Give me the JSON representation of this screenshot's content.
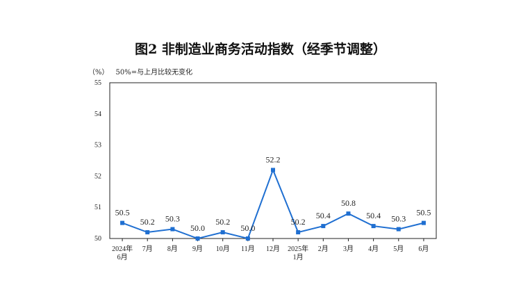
{
  "title": "图2  非制造业商务活动指数（经季节调整）",
  "unit": "（%）",
  "note": "50%=与上月比较无变化",
  "chart_data": {
    "type": "line",
    "title": "图2  非制造业商务活动指数（经季节调整）",
    "ylabel": "（%）",
    "ylim": [
      50,
      55
    ],
    "yticks": [
      "50",
      "51",
      "52",
      "53",
      "54",
      "55"
    ],
    "categories": [
      [
        "2024年",
        "6月"
      ],
      [
        "7月"
      ],
      [
        "8月"
      ],
      [
        "9月"
      ],
      [
        "10月"
      ],
      [
        "11月"
      ],
      [
        "12月"
      ],
      [
        "2025年",
        "1月"
      ],
      [
        "2月"
      ],
      [
        "3月"
      ],
      [
        "4月"
      ],
      [
        "5月"
      ],
      [
        "6月"
      ]
    ],
    "values": [
      50.5,
      50.2,
      50.3,
      50.0,
      50.2,
      50.0,
      52.2,
      50.2,
      50.4,
      50.8,
      50.4,
      50.3,
      50.5
    ],
    "value_labels": [
      "50.5",
      "50.2",
      "50.3",
      "50.0",
      "50.2",
      "50.0",
      "52.2",
      "50.2",
      "50.4",
      "50.8",
      "50.4",
      "50.3",
      "50.5"
    ],
    "grid": false,
    "line_color": "#1F6FD1"
  }
}
